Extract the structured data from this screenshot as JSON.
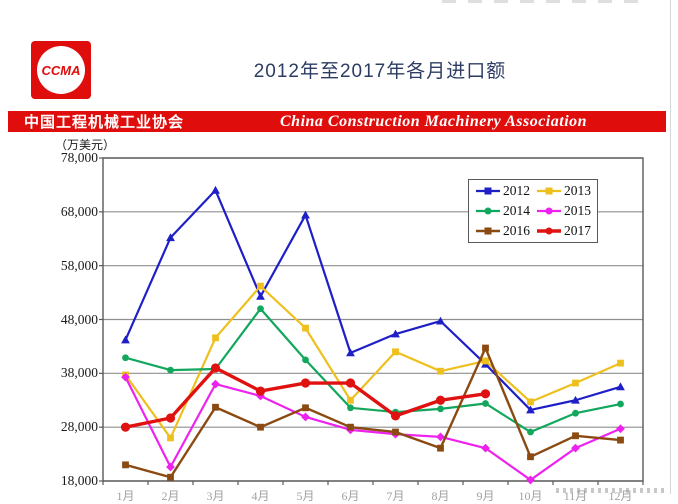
{
  "header": {
    "logo_text": "CCMA",
    "title": "2012年至2017年各月进口额"
  },
  "banner": {
    "cn": "中国工程机械工业协会",
    "en": "China Construction Machinery Association",
    "bg_color": "#e00d0d"
  },
  "chart_data": {
    "type": "line",
    "title": "2012年至2017年各月进口额",
    "unit_label": "（万美元）",
    "categories": [
      "1月",
      "2月",
      "3月",
      "4月",
      "5月",
      "6月",
      "7月",
      "8月",
      "9月",
      "10月",
      "11月",
      "12月"
    ],
    "ylim": [
      18000,
      78000
    ],
    "ytick_step": 10000,
    "ytick_labels": [
      "78,000",
      "68,000",
      "58,000",
      "48,000",
      "38,000",
      "28,000",
      "18,000"
    ],
    "grid": true,
    "legend_position": "top-right",
    "series": [
      {
        "name": "2012",
        "color": "#1f1fc8",
        "marker": "triangle",
        "line_width": 2.2,
        "values": [
          44200,
          63200,
          72000,
          52300,
          67400,
          41800,
          45300,
          47700,
          39700,
          31200,
          33000,
          35500
        ]
      },
      {
        "name": "2013",
        "color": "#eec01e",
        "marker": "square",
        "line_width": 2.2,
        "values": [
          37700,
          26000,
          44600,
          54200,
          46400,
          33000,
          42000,
          38400,
          40300,
          32700,
          36200,
          39900
        ]
      },
      {
        "name": "2014",
        "color": "#12a75c",
        "marker": "circle",
        "line_width": 2.2,
        "values": [
          40900,
          38600,
          38800,
          50000,
          40500,
          31600,
          30800,
          31400,
          32400,
          27100,
          30600,
          32300
        ]
      },
      {
        "name": "2015",
        "color": "#ee22ee",
        "marker": "diamond",
        "line_width": 2.2,
        "values": [
          37300,
          20600,
          36000,
          33800,
          29900,
          27500,
          26700,
          26200,
          24100,
          18200,
          24100,
          27700
        ]
      },
      {
        "name": "2016",
        "color": "#8a4a12",
        "marker": "square",
        "line_width": 2.4,
        "values": [
          21000,
          18700,
          31700,
          28000,
          31600,
          28000,
          27100,
          24100,
          42700,
          22500,
          26400,
          25600
        ]
      },
      {
        "name": "2017",
        "color": "#e01111",
        "marker": "circle",
        "line_width": 3.4,
        "values": [
          28000,
          29700,
          39000,
          34700,
          36200,
          36200,
          30100,
          33000,
          34200
        ]
      }
    ],
    "colors": {
      "grid": "#8f8f8f",
      "plot_border": "#595959",
      "axis_text": "#1a1a1a"
    }
  }
}
